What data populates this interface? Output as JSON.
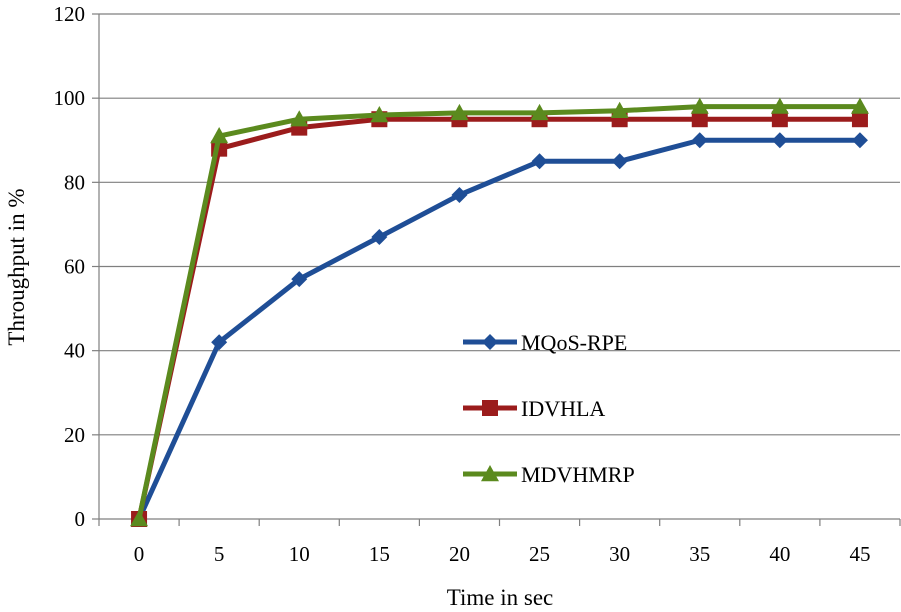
{
  "chart_data": {
    "type": "line",
    "title": "",
    "xlabel": "Time in sec",
    "ylabel": "Throughput  in %",
    "categories": [
      "0",
      "5",
      "10",
      "15",
      "20",
      "25",
      "30",
      "35",
      "40",
      "45"
    ],
    "ylim": [
      0,
      120
    ],
    "yticks": [
      "0",
      "20",
      "40",
      "60",
      "80",
      "100",
      "120"
    ],
    "grid": true,
    "legend_position": "center-right",
    "series": [
      {
        "name": "MQoS-RPE",
        "marker": "diamond",
        "color": "#1F4E96",
        "values": [
          0,
          42,
          57,
          67,
          77,
          85,
          85,
          90,
          90,
          90
        ]
      },
      {
        "name": "IDVHLA",
        "marker": "square",
        "color": "#9B1C1C",
        "values": [
          0,
          88,
          93,
          95,
          95,
          95,
          95,
          95,
          95,
          95
        ]
      },
      {
        "name": "MDVHMRP",
        "marker": "triangle",
        "color": "#5B8A1E",
        "values": [
          0,
          91,
          95,
          96,
          96.5,
          96.5,
          97,
          98,
          98,
          98
        ]
      }
    ]
  }
}
